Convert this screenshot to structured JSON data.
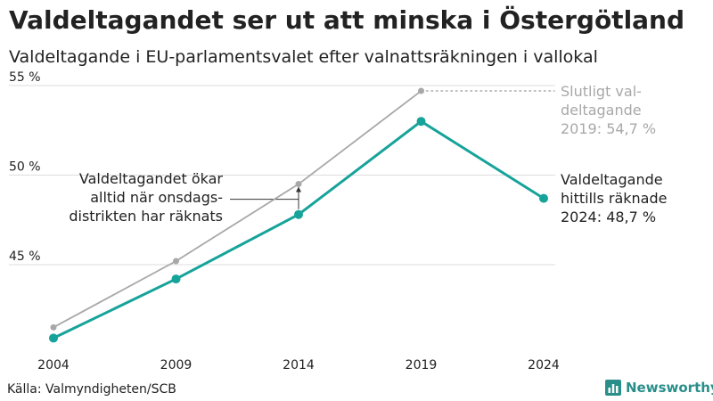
{
  "title": "Valdeltagandet ser ut att minska i Östergötland",
  "subtitle": "Valdeltagande i EU-parlamentsvalet efter valnattsräkningen i vallokal",
  "source": "Källa: Valmyndigheten/SCB",
  "brand": {
    "name": "Newsworthy",
    "icon": "bar-chart-logo-icon"
  },
  "colors": {
    "counted": "#16a39a",
    "final": "#a8a8a8",
    "grid": "#dddddd",
    "text": "#222222",
    "final_label": "#a8a8a8"
  },
  "chart_data": {
    "type": "line",
    "x": [
      "2004",
      "2009",
      "2014",
      "2019",
      "2024"
    ],
    "ylim": [
      40.3,
      55.8
    ],
    "yticks": [
      45,
      50,
      55
    ],
    "ytick_labels": [
      "45 %",
      "50 %",
      "55 %"
    ],
    "grid": true,
    "series": [
      {
        "key": "counted",
        "values": [
          40.9,
          44.2,
          47.8,
          53.0,
          48.7
        ]
      },
      {
        "key": "final",
        "values": [
          41.5,
          45.2,
          49.5,
          54.7,
          null
        ]
      }
    ],
    "annotations": {
      "final_label": [
        "Slutligt val-",
        "deltagande",
        "2019: 54,7 %"
      ],
      "counted_label": [
        "Valdeltagande",
        "hittills räknade",
        "2024: 48,7 %"
      ],
      "note": [
        "Valdeltagandet ökar",
        "alltid när onsdags-",
        "distrikten har räknats"
      ]
    }
  }
}
